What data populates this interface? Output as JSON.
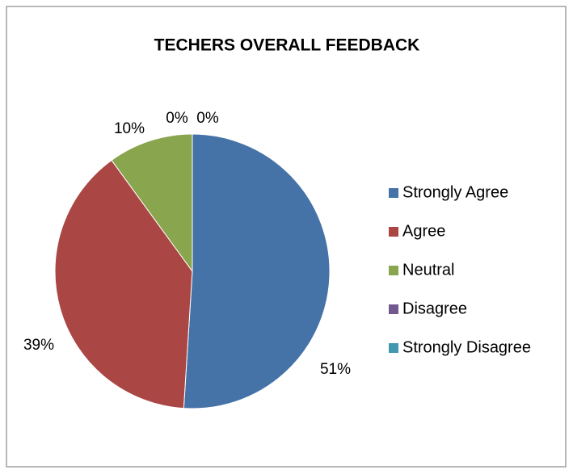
{
  "chart_data": {
    "type": "pie",
    "title": "TECHERS OVERALL FEEDBACK",
    "categories": [
      "Strongly Agree",
      "Agree",
      "Neutral",
      "Disagree",
      "Strongly Disagree"
    ],
    "values": [
      51,
      39,
      10,
      0,
      0
    ],
    "value_labels": [
      "51%",
      "39%",
      "10%",
      "0%",
      "0%"
    ],
    "colors": [
      "#4572a7",
      "#aa4643",
      "#89a54e",
      "#71588f",
      "#4198af"
    ],
    "legend": "right"
  }
}
